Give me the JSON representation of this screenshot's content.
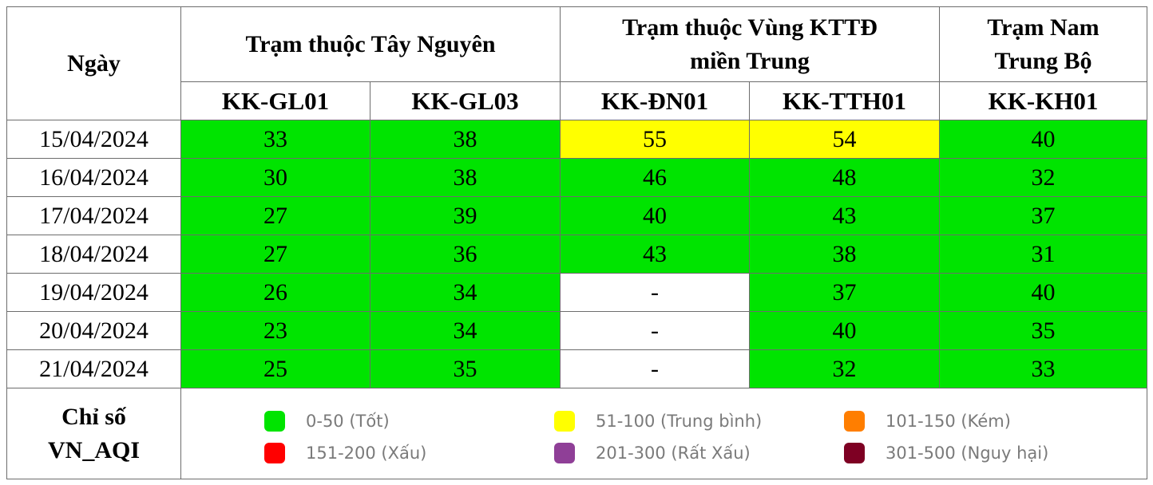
{
  "header": {
    "date_label": "Ngày",
    "groups": [
      {
        "label_lines": [
          "Trạm thuộc Tây Nguyên"
        ]
      },
      {
        "label_lines": [
          "Trạm thuộc Vùng KTTĐ",
          "miền Trung"
        ]
      },
      {
        "label_lines": [
          "Trạm Nam",
          "Trung Bộ"
        ]
      }
    ],
    "stations": [
      "KK-GL01",
      "KK-GL03",
      "KK-ĐN01",
      "KK-TTH01",
      "KK-KH01"
    ]
  },
  "rows": [
    {
      "date": "15/04/2024",
      "values": [
        "33",
        "38",
        "55",
        "54",
        "40"
      ]
    },
    {
      "date": "16/04/2024",
      "values": [
        "30",
        "38",
        "46",
        "48",
        "32"
      ]
    },
    {
      "date": "17/04/2024",
      "values": [
        "27",
        "39",
        "40",
        "43",
        "37"
      ]
    },
    {
      "date": "18/04/2024",
      "values": [
        "27",
        "36",
        "43",
        "38",
        "31"
      ]
    },
    {
      "date": "19/04/2024",
      "values": [
        "26",
        "34",
        "-",
        "37",
        "40"
      ]
    },
    {
      "date": "20/04/2024",
      "values": [
        "23",
        "34",
        "-",
        "40",
        "35"
      ]
    },
    {
      "date": "21/04/2024",
      "values": [
        "25",
        "35",
        "-",
        "32",
        "33"
      ]
    }
  ],
  "legend": {
    "title_lines": [
      "Chỉ số",
      "VN_AQI"
    ],
    "items": [
      {
        "label": "0-50 (Tốt)",
        "color": "#00e400"
      },
      {
        "label": "51-100 (Trung bình)",
        "color": "#ffff00"
      },
      {
        "label": "101-150 (Kém)",
        "color": "#ff7e00"
      },
      {
        "label": "151-200 (Xấu)",
        "color": "#ff0000"
      },
      {
        "label": "201-300 (Rất Xấu)",
        "color": "#8f3f97"
      },
      {
        "label": "301-500 (Nguy hại)",
        "color": "#7e0023"
      }
    ]
  },
  "colors": {
    "good": "#00e400",
    "moderate": "#ffff00",
    "no_data": "#ffffff",
    "border": "#6d6d6d"
  }
}
